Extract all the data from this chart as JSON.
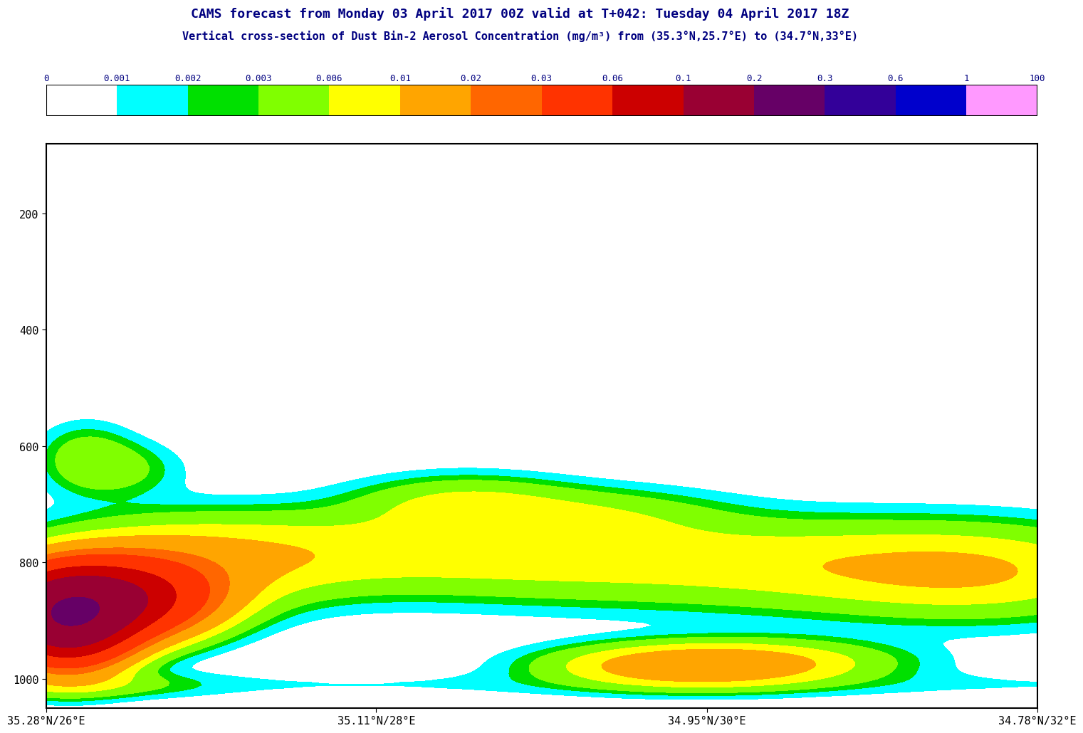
{
  "title1": "CAMS forecast from Monday 03 April 2017 00Z valid at T+042: Tuesday 04 April 2017 18Z",
  "title2": "Vertical cross-section of Dust Bin-2 Aerosol Concentration (mg/m³) from (35.3°N,25.7°E) to (34.7°N,33°E)",
  "colorbar_levels": [
    0,
    0.001,
    0.002,
    0.003,
    0.006,
    0.01,
    0.02,
    0.03,
    0.06,
    0.1,
    0.2,
    0.3,
    0.6,
    1,
    100
  ],
  "colorbar_colors": [
    "#ffffff",
    "#00ffff",
    "#00e000",
    "#80ff00",
    "#ffff00",
    "#ffa500",
    "#ff6600",
    "#ff3300",
    "#cc0000",
    "#990033",
    "#660066",
    "#330099",
    "#0000cc",
    "#ff99ff"
  ],
  "xlabel_ticks": [
    "35.28°N/26°E",
    "35.11°N/28°E",
    "34.95°N/30°E",
    "34.78°N/32°E"
  ],
  "ylabel_ticks": [
    200,
    400,
    600,
    800,
    1000
  ],
  "ylim": [
    1050,
    80
  ],
  "xlim": [
    0,
    1.0
  ],
  "text_color": "#000080",
  "title_fontsize": 13,
  "tick_fontsize": 11
}
